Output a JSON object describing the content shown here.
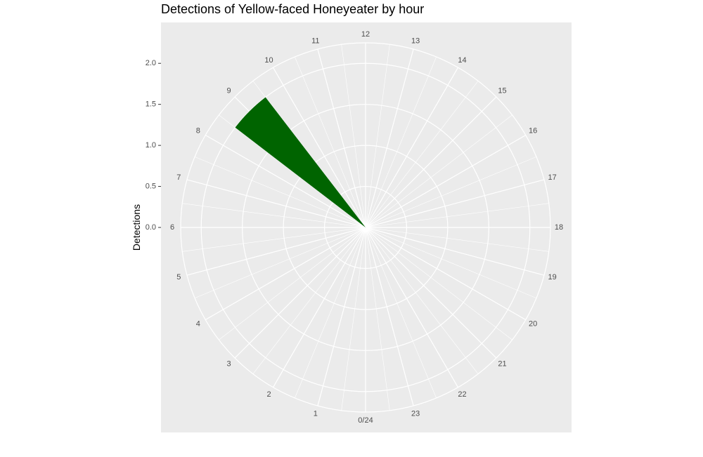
{
  "chart_data": {
    "type": "bar",
    "coord": "polar",
    "title": "Detections of Yellow-faced Honeyeater by hour",
    "xlabel": "",
    "ylabel": "Detections",
    "categories": [
      "0/24",
      "1",
      "2",
      "3",
      "4",
      "5",
      "6",
      "7",
      "8",
      "9",
      "10",
      "11",
      "12",
      "13",
      "14",
      "15",
      "16",
      "17",
      "18",
      "19",
      "20",
      "21",
      "22",
      "23"
    ],
    "values": [
      0,
      0,
      0,
      0,
      0,
      0,
      0,
      0,
      0,
      2,
      0,
      0,
      0,
      0,
      0,
      0,
      0,
      0,
      0,
      0,
      0,
      0,
      0,
      0
    ],
    "ylim": [
      0,
      2.25
    ],
    "yticks": [
      0.0,
      0.5,
      1.0,
      1.5,
      2.0
    ],
    "ytick_labels": [
      "0.0",
      "0.5",
      "1.0",
      "1.5",
      "2.0"
    ],
    "grid": true,
    "colors": {
      "bar": "#006400",
      "panel": "#ebebeb",
      "grid": "#ffffff"
    }
  }
}
